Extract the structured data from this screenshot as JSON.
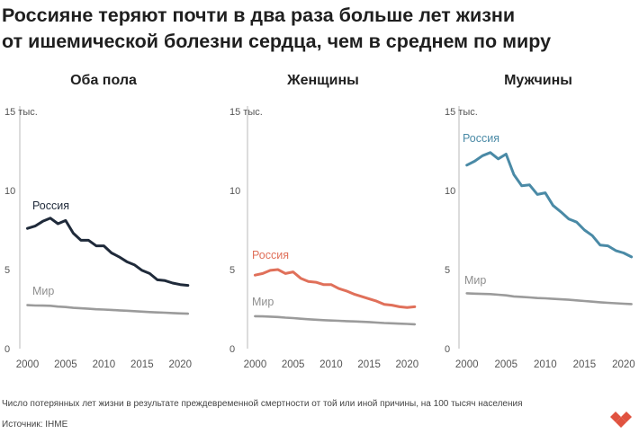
{
  "headline": {
    "line1": "Россияне теряют почти в два раза больше лет жизни",
    "line2": "от ишемической болезни сердца, чем в среднем по миру"
  },
  "colors": {
    "russia_both": "#1f2a3a",
    "russia_women": "#e0705a",
    "russia_men": "#4a8aa6",
    "world": "#9b9b9b",
    "axis": "#b8b8b8",
    "logo": "#e0523f"
  },
  "chart_data": [
    {
      "type": "line",
      "title": "Оба пола",
      "ylim": [
        0,
        15
      ],
      "xlim": [
        1999,
        2021.5
      ],
      "y_ticks": [
        {
          "value": 0,
          "label": "0"
        },
        {
          "value": 5,
          "label": "5"
        },
        {
          "value": 10,
          "label": "10"
        },
        {
          "value": 15,
          "label": "15 тыс."
        }
      ],
      "x_ticks": [
        2000,
        2005,
        2010,
        2015,
        2020
      ],
      "grid": false,
      "series": [
        {
          "name": "Россия",
          "color_key": "russia_both",
          "x": [
            2000,
            2001,
            2002,
            2003,
            2004,
            2005,
            2006,
            2007,
            2008,
            2009,
            2010,
            2011,
            2012,
            2013,
            2014,
            2015,
            2016,
            2017,
            2018,
            2019,
            2020,
            2021
          ],
          "values": [
            7.6,
            7.75,
            8.05,
            8.25,
            7.9,
            8.1,
            7.3,
            6.85,
            6.85,
            6.5,
            6.5,
            6.05,
            5.8,
            5.5,
            5.3,
            4.95,
            4.75,
            4.35,
            4.3,
            4.15,
            4.05,
            4.0
          ]
        },
        {
          "name": "Мир",
          "color_key": "world",
          "x": [
            2000,
            2001,
            2002,
            2003,
            2004,
            2005,
            2006,
            2007,
            2008,
            2009,
            2010,
            2011,
            2012,
            2013,
            2014,
            2015,
            2016,
            2017,
            2018,
            2019,
            2020,
            2021
          ],
          "values": [
            2.75,
            2.73,
            2.72,
            2.71,
            2.66,
            2.63,
            2.58,
            2.55,
            2.52,
            2.49,
            2.47,
            2.45,
            2.42,
            2.4,
            2.37,
            2.34,
            2.31,
            2.29,
            2.27,
            2.25,
            2.23,
            2.21
          ]
        }
      ]
    },
    {
      "type": "line",
      "title": "Женщины",
      "ylim": [
        0,
        15
      ],
      "xlim": [
        1999,
        2021.5
      ],
      "y_ticks": [
        {
          "value": 0,
          "label": "0"
        },
        {
          "value": 5,
          "label": "5"
        },
        {
          "value": 10,
          "label": "10"
        },
        {
          "value": 15,
          "label": "15 тыс."
        }
      ],
      "x_ticks": [
        2000,
        2005,
        2010,
        2015,
        2020
      ],
      "grid": false,
      "series": [
        {
          "name": "Россия",
          "color_key": "russia_women",
          "x": [
            2000,
            2001,
            2002,
            2003,
            2004,
            2005,
            2006,
            2007,
            2008,
            2009,
            2010,
            2011,
            2012,
            2013,
            2014,
            2015,
            2016,
            2017,
            2018,
            2019,
            2020,
            2021
          ],
          "values": [
            4.65,
            4.75,
            4.95,
            5.0,
            4.75,
            4.85,
            4.45,
            4.25,
            4.2,
            4.05,
            4.05,
            3.8,
            3.65,
            3.45,
            3.3,
            3.15,
            3.0,
            2.8,
            2.75,
            2.65,
            2.6,
            2.65
          ]
        },
        {
          "name": "Мир",
          "color_key": "world",
          "x": [
            2000,
            2001,
            2002,
            2003,
            2004,
            2005,
            2006,
            2007,
            2008,
            2009,
            2010,
            2011,
            2012,
            2013,
            2014,
            2015,
            2016,
            2017,
            2018,
            2019,
            2020,
            2021
          ],
          "values": [
            2.05,
            2.04,
            2.02,
            2.0,
            1.96,
            1.93,
            1.89,
            1.86,
            1.83,
            1.8,
            1.78,
            1.76,
            1.74,
            1.72,
            1.7,
            1.68,
            1.65,
            1.62,
            1.6,
            1.58,
            1.56,
            1.54
          ]
        }
      ]
    },
    {
      "type": "line",
      "title": "Мужчины",
      "ylim": [
        0,
        15
      ],
      "xlim": [
        1999,
        2021.5
      ],
      "y_ticks": [
        {
          "value": 0,
          "label": "0"
        },
        {
          "value": 5,
          "label": "5"
        },
        {
          "value": 10,
          "label": "10"
        },
        {
          "value": 15,
          "label": "15 тыс."
        }
      ],
      "x_ticks": [
        2000,
        2005,
        2010,
        2015,
        2020
      ],
      "grid": false,
      "series": [
        {
          "name": "Россия",
          "color_key": "russia_men",
          "x": [
            2000,
            2001,
            2002,
            2003,
            2004,
            2005,
            2006,
            2007,
            2008,
            2009,
            2010,
            2011,
            2012,
            2013,
            2014,
            2015,
            2016,
            2017,
            2018,
            2019,
            2020,
            2021
          ],
          "values": [
            11.6,
            11.85,
            12.2,
            12.4,
            12.0,
            12.3,
            11.0,
            10.3,
            10.35,
            9.75,
            9.85,
            9.05,
            8.65,
            8.2,
            8.0,
            7.5,
            7.15,
            6.55,
            6.5,
            6.2,
            6.05,
            5.8
          ]
        },
        {
          "name": "Мир",
          "color_key": "world",
          "x": [
            2000,
            2001,
            2002,
            2003,
            2004,
            2005,
            2006,
            2007,
            2008,
            2009,
            2010,
            2011,
            2012,
            2013,
            2014,
            2015,
            2016,
            2017,
            2018,
            2019,
            2020,
            2021
          ],
          "values": [
            3.5,
            3.48,
            3.46,
            3.45,
            3.41,
            3.37,
            3.3,
            3.27,
            3.24,
            3.2,
            3.18,
            3.15,
            3.12,
            3.09,
            3.05,
            3.01,
            2.97,
            2.93,
            2.9,
            2.87,
            2.84,
            2.82
          ]
        }
      ]
    }
  ],
  "footnote": "Число потерянных лет жизни в результате преждевременной смертности от той или иной причины, на 100 тысяч населения",
  "source": "Источник: IHME"
}
